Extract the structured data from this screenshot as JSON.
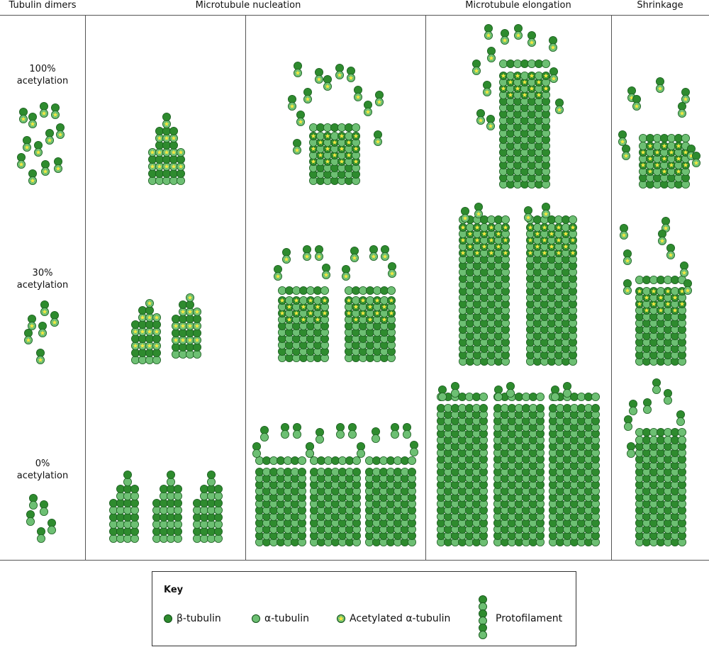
{
  "headers": {
    "tubulin_dimers": "Tubulin dimers",
    "nucleation": "Microtubule nucleation",
    "elongation": "Microtubule elongation",
    "shrinkage": "Shrinkage"
  },
  "rows": [
    {
      "line1": "100%",
      "line2": "acetylation"
    },
    {
      "line1": "30%",
      "line2": "acetylation"
    },
    {
      "line1": "0%",
      "line2": "acetylation"
    }
  ],
  "key": {
    "title": "Key",
    "beta": "β-tubulin",
    "alpha": "α-tubulin",
    "acetylated": "Acetylated α-tubulin",
    "protofilament": "Protofilament"
  },
  "colors": {
    "beta": "#2e8b2e",
    "alpha": "#6dbf73",
    "acetyl_star": "#f4e842",
    "outline": "#1b5e20"
  }
}
